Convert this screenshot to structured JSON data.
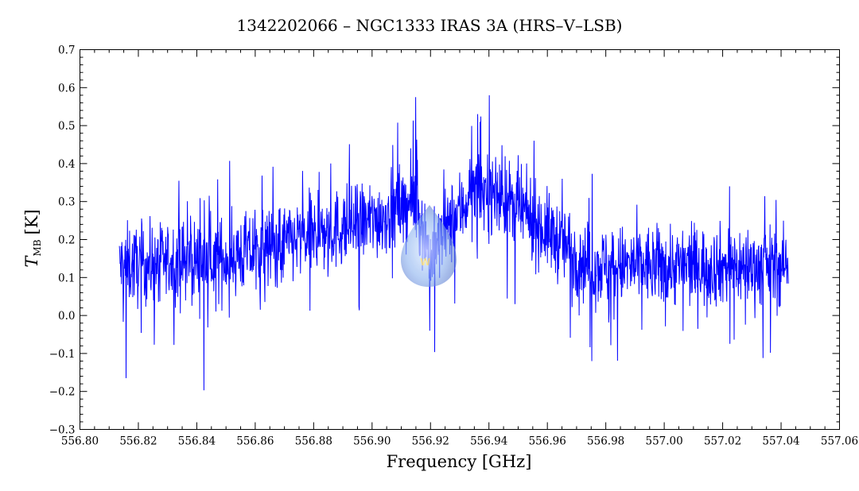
{
  "chart_data": {
    "type": "line",
    "title": "1342202066 – NGC1333 IRAS 3A (HRS–V–LSB)",
    "xlabel": "Frequency [GHz]",
    "ylabel_main": "T",
    "ylabel_sub": "MB",
    "ylabel_unit": "[K]",
    "xlim": [
      556.8,
      557.06
    ],
    "ylim": [
      -0.3,
      0.7
    ],
    "x_ticks": [
      "556.80",
      "556.82",
      "556.84",
      "556.86",
      "556.88",
      "556.90",
      "556.92",
      "556.94",
      "556.96",
      "556.98",
      "557.00",
      "557.02",
      "557.04",
      "557.06"
    ],
    "y_ticks": [
      "0.7",
      "0.6",
      "0.5",
      "0.4",
      "0.3",
      "0.2",
      "0.1",
      "0.0",
      "−0.1",
      "−0.2",
      "−0.3"
    ],
    "grid": false,
    "series": [
      {
        "color": "#0000ff",
        "x_start": 556.8135,
        "x_end": 557.0425,
        "noise_amplitude": 0.075,
        "envelope_x": [
          556.8135,
          556.85,
          556.88,
          556.9,
          556.915,
          556.92,
          556.925,
          556.935,
          556.945,
          556.96,
          556.975,
          557.0,
          557.0425
        ],
        "envelope_y": [
          0.13,
          0.15,
          0.21,
          0.25,
          0.3,
          0.15,
          0.22,
          0.33,
          0.31,
          0.22,
          0.13,
          0.13,
          0.13
        ],
        "extremes": [
          {
            "x": 556.8158,
            "y": -0.165
          },
          {
            "x": 556.8424,
            "y": -0.197
          },
          {
            "x": 556.9149,
            "y": 0.575
          },
          {
            "x": 556.9401,
            "y": 0.58
          },
          {
            "x": 556.9752,
            "y": -0.12
          },
          {
            "x": 557.0363,
            "y": -0.098
          },
          {
            "x": 556.9197,
            "y": -0.04
          }
        ]
      }
    ]
  },
  "watermark": {
    "text": "W"
  }
}
